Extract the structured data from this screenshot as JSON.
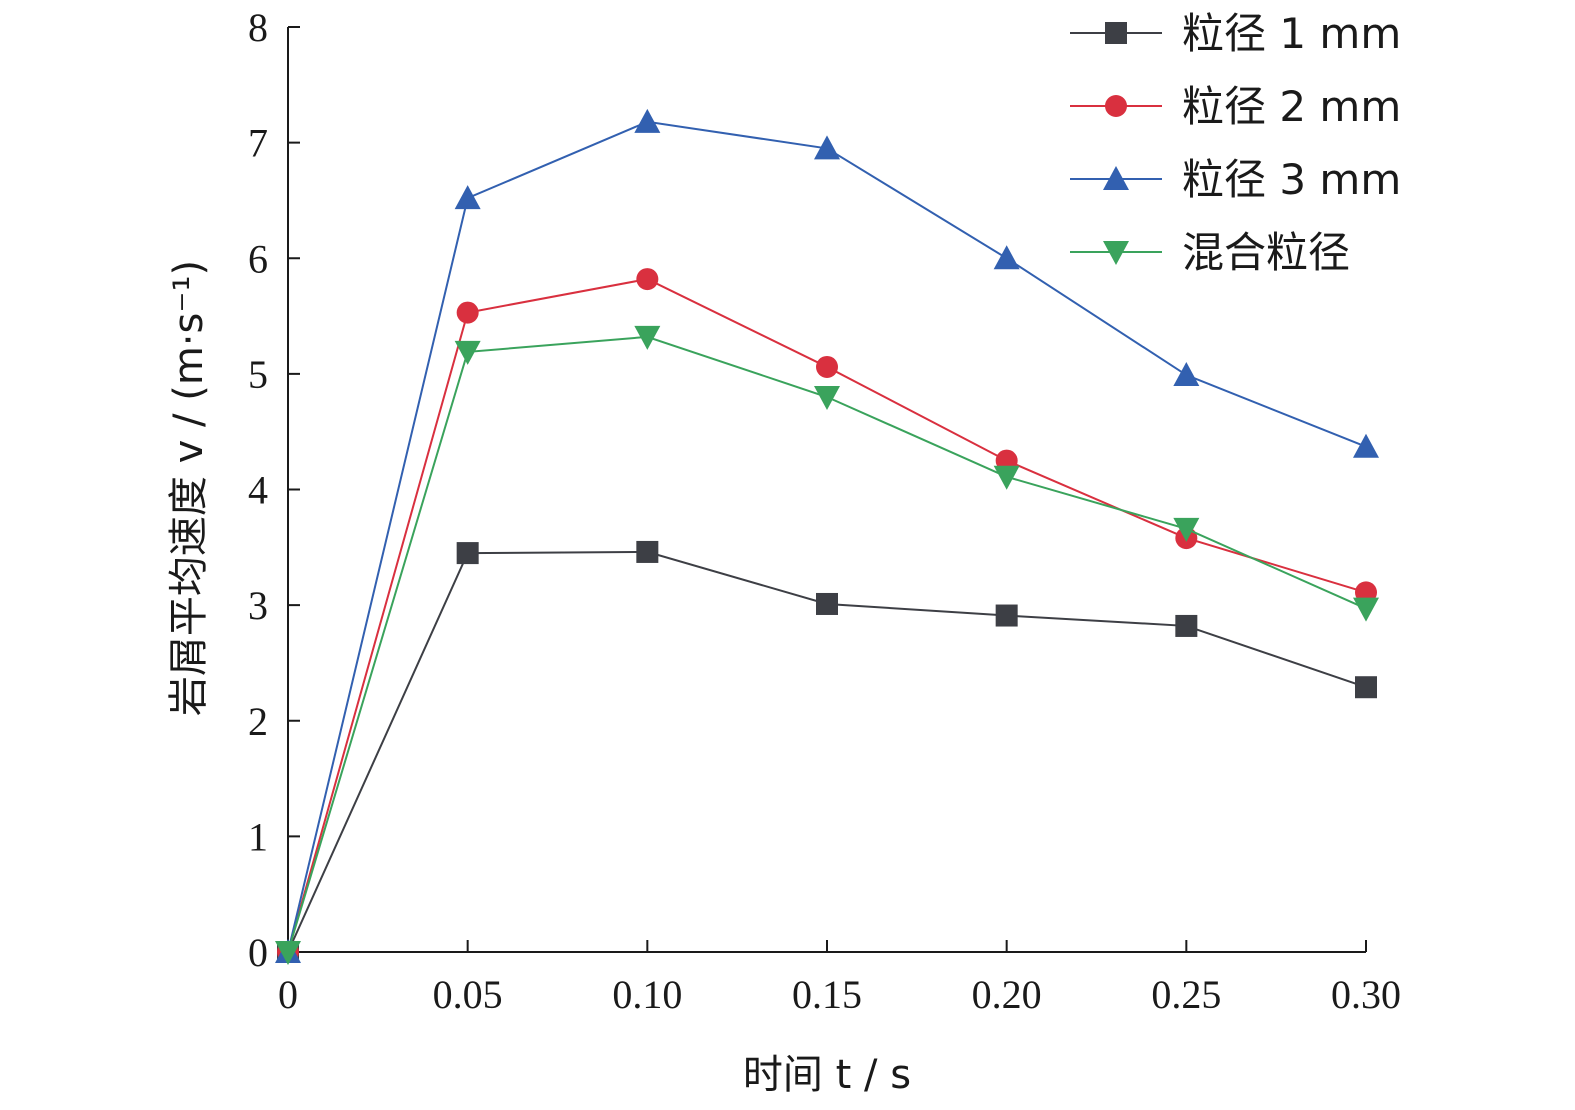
{
  "chart_data": {
    "type": "line",
    "title": "",
    "xlabel": "时间 t / s",
    "ylabel": "岩屑平均速度 v / (m·s⁻¹)",
    "x": [
      0,
      0.05,
      0.1,
      0.15,
      0.2,
      0.25,
      0.3
    ],
    "x_tick_labels": [
      "0",
      "0.05",
      "0.10",
      "0.15",
      "0.20",
      "0.25",
      "0.30"
    ],
    "y_tick_labels": [
      "0",
      "1",
      "2",
      "3",
      "4",
      "5",
      "6",
      "7",
      "8"
    ],
    "xlim": [
      0,
      0.3
    ],
    "ylim": [
      0,
      8
    ],
    "grid": false,
    "legend_position": "top-right",
    "series": [
      {
        "name": "粒径 1 mm",
        "color": "#3d3f45",
        "marker": "square",
        "values": [
          0,
          3.45,
          3.46,
          3.01,
          2.91,
          2.82,
          2.29
        ]
      },
      {
        "name": "粒径 2 mm",
        "color": "#d9303f",
        "marker": "circle",
        "values": [
          0,
          5.53,
          5.82,
          5.06,
          4.25,
          3.58,
          3.11
        ]
      },
      {
        "name": "粒径 3 mm",
        "color": "#3260b0",
        "marker": "triangle-up",
        "values": [
          0,
          6.52,
          7.18,
          6.95,
          6.0,
          4.99,
          4.37
        ]
      },
      {
        "name": "混合粒径",
        "color": "#3aa35c",
        "marker": "triangle-down",
        "values": [
          0,
          5.19,
          5.32,
          4.8,
          4.11,
          3.66,
          2.97
        ]
      }
    ]
  }
}
